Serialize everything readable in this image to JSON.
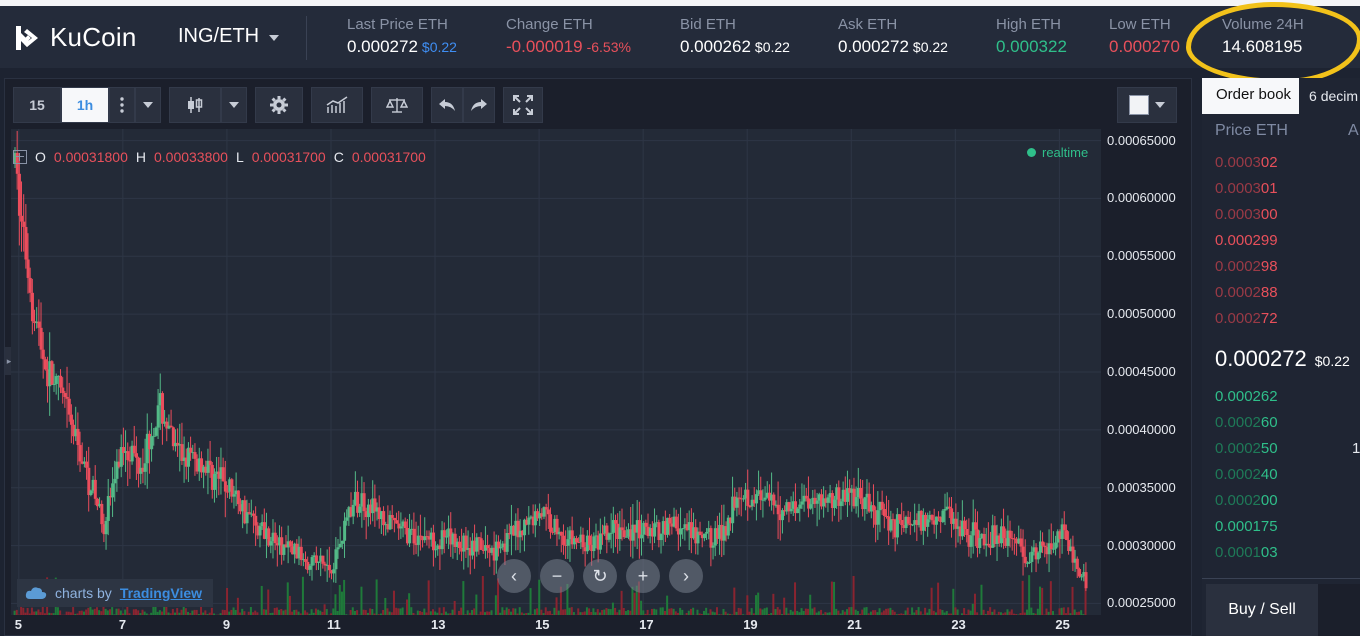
{
  "app": {
    "brand": "KuCoin",
    "pair": "ING/ETH"
  },
  "stats": {
    "last_price": {
      "label": "Last Price ETH",
      "value": "0.000272",
      "usd": "$0.22"
    },
    "change": {
      "label": "Change ETH",
      "value": "-0.000019",
      "pct": "-6.53%"
    },
    "bid": {
      "label": "Bid ETH",
      "value": "0.000262",
      "usd": "$0.22"
    },
    "ask": {
      "label": "Ask ETH",
      "value": "0.000272",
      "usd": "$0.22"
    },
    "high": {
      "label": "High ETH",
      "value": "0.000322"
    },
    "low": {
      "label": "Low ETH",
      "value": "0.000270"
    },
    "volume": {
      "label": "Volume 24H",
      "value": "14.608195"
    }
  },
  "toolbar": {
    "interval_15": "15",
    "interval_1h": "1h"
  },
  "legend": {
    "o_label": "O",
    "o_value": "0.00031800",
    "h_label": "H",
    "h_value": "0.00033800",
    "l_label": "L",
    "l_value": "0.00031700",
    "c_label": "C",
    "c_value": "0.00031700",
    "realtime": "realtime"
  },
  "credit": {
    "prefix": "charts by",
    "link": "TradingView"
  },
  "chart_data": {
    "type": "candlestick",
    "x_ticks": [
      "5",
      "7",
      "9",
      "11",
      "13",
      "15",
      "17",
      "19",
      "21",
      "23",
      "25"
    ],
    "y_ticks": [
      "0.00065000",
      "0.00060000",
      "0.00055000",
      "0.00050000",
      "0.00045000",
      "0.00040000",
      "0.00035000",
      "0.00030000",
      "0.00025000"
    ],
    "ylim": [
      0.00024,
      0.00066
    ],
    "x_range": [
      4.85,
      25.8
    ],
    "up_color": "#53b987",
    "down_color": "#eb4d5c",
    "trend": [
      [
        4.9,
        0.00063
      ],
      [
        5.0,
        0.00059
      ],
      [
        5.2,
        0.00052
      ],
      [
        5.5,
        0.00045
      ],
      [
        5.8,
        0.00043
      ],
      [
        6.0,
        0.0004
      ],
      [
        6.3,
        0.00036
      ],
      [
        6.6,
        0.00032
      ],
      [
        7.0,
        0.00039
      ],
      [
        7.3,
        0.00037
      ],
      [
        7.7,
        0.00042
      ],
      [
        8.0,
        0.00038
      ],
      [
        8.5,
        0.00037
      ],
      [
        9.0,
        0.00035
      ],
      [
        9.5,
        0.00032
      ],
      [
        10.0,
        0.0003
      ],
      [
        10.5,
        0.00029
      ],
      [
        11.0,
        0.00028
      ],
      [
        11.3,
        0.00033
      ],
      [
        11.6,
        0.00034
      ],
      [
        12.0,
        0.00032
      ],
      [
        12.5,
        0.00031
      ],
      [
        13.0,
        0.000305
      ],
      [
        13.5,
        0.000302
      ],
      [
        14.0,
        0.000295
      ],
      [
        14.5,
        0.00031
      ],
      [
        15.0,
        0.00033
      ],
      [
        15.5,
        0.000305
      ],
      [
        16.0,
        0.0003
      ],
      [
        16.5,
        0.000315
      ],
      [
        17.0,
        0.00031
      ],
      [
        17.5,
        0.00032
      ],
      [
        18.0,
        0.000305
      ],
      [
        18.5,
        0.00031
      ],
      [
        18.8,
        0.00035
      ],
      [
        19.2,
        0.00034
      ],
      [
        19.6,
        0.00033
      ],
      [
        20.0,
        0.00034
      ],
      [
        20.5,
        0.00034
      ],
      [
        21.0,
        0.000345
      ],
      [
        21.4,
        0.00033
      ],
      [
        21.8,
        0.00032
      ],
      [
        22.3,
        0.00032
      ],
      [
        22.8,
        0.00033
      ],
      [
        23.2,
        0.00031
      ],
      [
        23.6,
        0.000305
      ],
      [
        24.0,
        0.00031
      ],
      [
        24.4,
        0.00029
      ],
      [
        24.8,
        0.0003
      ],
      [
        25.0,
        0.000315
      ],
      [
        25.2,
        0.00029
      ],
      [
        25.5,
        0.00027
      ]
    ]
  },
  "orderbook": {
    "tab": "Order book",
    "decimals": "6 decim",
    "col_price": "Price ETH",
    "col_amount": "A",
    "asks": [
      {
        "dim": "0.0003",
        "bright": "02"
      },
      {
        "dim": "0.0003",
        "bright": "01"
      },
      {
        "dim": "0.0003",
        "bright": "00"
      },
      {
        "dim": "",
        "bright": "0.000299"
      },
      {
        "dim": "0.0002",
        "bright": "98"
      },
      {
        "dim": "0.0002",
        "bright": "88"
      },
      {
        "dim": "0.0002",
        "bright": "72"
      }
    ],
    "mid_price": "0.000272",
    "mid_usd": "$0.22",
    "bids": [
      {
        "dim": "",
        "bright": "0.000262"
      },
      {
        "dim": "0.0002",
        "bright": "60"
      },
      {
        "dim": "0.0002",
        "bright": "50"
      },
      {
        "dim": "0.0002",
        "bright": "40"
      },
      {
        "dim": "0.0002",
        "bright": "00"
      },
      {
        "dim": "",
        "bright": "0.000175"
      },
      {
        "dim": "0.0001",
        "bright": "03"
      }
    ],
    "bid_amount_fragment": "1"
  },
  "actions": {
    "buy_sell": "Buy / Sell"
  }
}
